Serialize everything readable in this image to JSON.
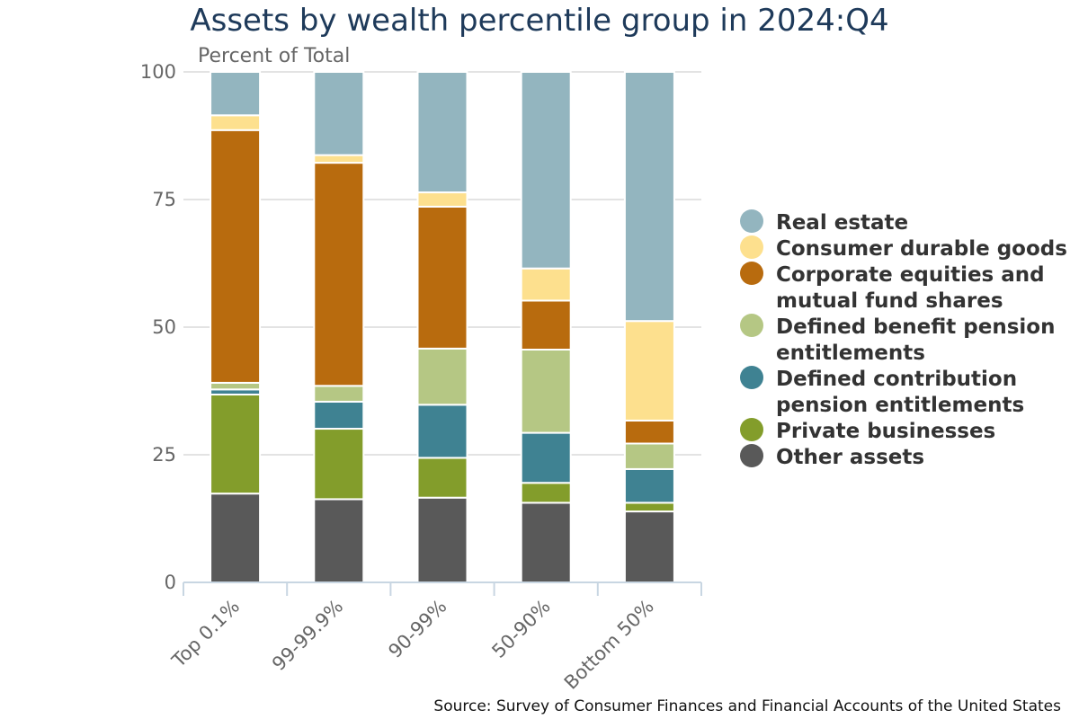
{
  "chart_data": {
    "type": "bar",
    "stacked": true,
    "title": "Assets by wealth percentile group in 2024:Q4",
    "ylabel": "Percent of Total",
    "xlabel": "",
    "ylim": [
      0,
      100
    ],
    "yticks": [
      0,
      25,
      50,
      75,
      100
    ],
    "grid": true,
    "legend_position": "right",
    "categories": [
      "Top 0.1%",
      "99-99.9%",
      "90-99%",
      "50-90%",
      "Bottom 50%"
    ],
    "series": [
      {
        "name": "Other assets",
        "color": "#595959",
        "values": [
          17.4,
          16.3,
          16.6,
          15.6,
          13.9
        ]
      },
      {
        "name": "Private businesses",
        "color": "#839d2b",
        "values": [
          19.4,
          13.8,
          7.8,
          3.9,
          1.7
        ]
      },
      {
        "name": "Defined contribution pension entitlements",
        "color": "#3f8292",
        "values": [
          1.0,
          5.3,
          10.4,
          9.8,
          6.6
        ]
      },
      {
        "name": "Defined benefit pension entitlements",
        "color": "#b5c784",
        "values": [
          1.3,
          3.1,
          11.0,
          16.3,
          5.0
        ]
      },
      {
        "name": "Corporate equities and mutual fund shares",
        "color": "#b86b0e",
        "values": [
          49.5,
          43.7,
          27.8,
          9.6,
          4.5
        ]
      },
      {
        "name": "Consumer durable goods",
        "color": "#fde08e",
        "values": [
          2.9,
          1.5,
          2.8,
          6.3,
          19.5
        ]
      },
      {
        "name": "Real estate",
        "color": "#93b5bf",
        "values": [
          8.5,
          16.3,
          23.6,
          38.5,
          48.8
        ]
      }
    ],
    "legend": [
      {
        "label_lines": [
          "Real estate"
        ],
        "color": "#93b5bf"
      },
      {
        "label_lines": [
          "Consumer durable goods"
        ],
        "color": "#fde08e"
      },
      {
        "label_lines": [
          "Corporate equities and",
          "mutual fund shares"
        ],
        "color": "#b86b0e"
      },
      {
        "label_lines": [
          "Defined benefit pension",
          "entitlements"
        ],
        "color": "#b5c784"
      },
      {
        "label_lines": [
          "Defined contribution",
          "pension entitlements"
        ],
        "color": "#3f8292"
      },
      {
        "label_lines": [
          "Private businesses"
        ],
        "color": "#839d2b"
      },
      {
        "label_lines": [
          "Other assets"
        ],
        "color": "#595959"
      }
    ]
  },
  "source": "Source: Survey of Consumer Finances and Financial Accounts of the United States"
}
